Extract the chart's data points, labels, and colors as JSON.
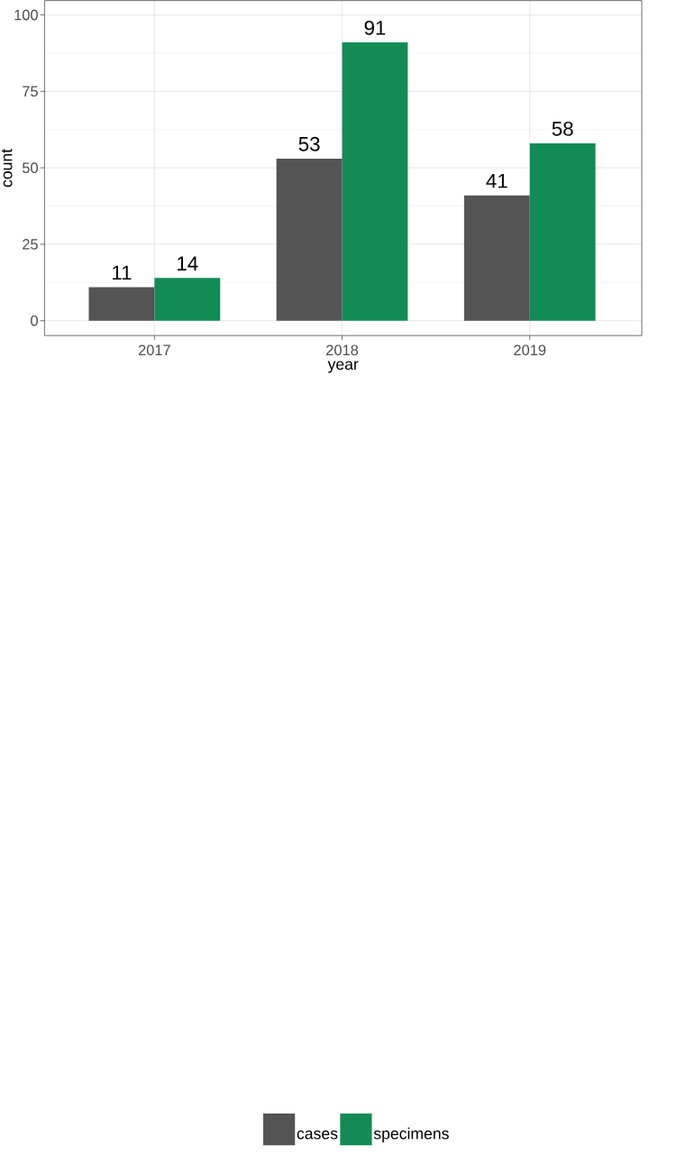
{
  "chart_data": {
    "type": "bar",
    "xlabel": "year",
    "ylabel": "count",
    "categories": [
      "2017",
      "2018",
      "2019"
    ],
    "series": [
      {
        "name": "cases",
        "color": "#545454",
        "values": [
          11,
          53,
          41
        ]
      },
      {
        "name": "specimens",
        "color": "#138b55",
        "values": [
          14,
          91,
          58
        ]
      }
    ],
    "ylim": [
      -4.85,
      104.7
    ],
    "yticks": [
      0,
      25,
      50,
      75,
      100
    ],
    "grid": true,
    "legend": "bottom",
    "data_labels": true
  }
}
